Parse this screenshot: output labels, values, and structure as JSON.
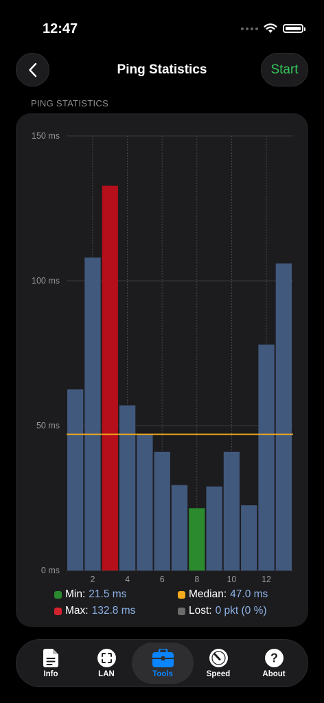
{
  "status_bar": {
    "time": "12:47"
  },
  "nav": {
    "title": "Ping Statistics",
    "start_label": "Start"
  },
  "section": {
    "header": "PING STATISTICS"
  },
  "colors": {
    "bar": "#42597e",
    "min_bar": "#2b8a2e",
    "max_bar": "#b40f1b",
    "median_line": "#f4aa1c",
    "lost": "#6b6b6b",
    "accent": "#0a84ff",
    "start": "#34c759"
  },
  "chart_data": {
    "type": "bar",
    "x": [
      1,
      2,
      3,
      4,
      5,
      6,
      7,
      8,
      9,
      10,
      11,
      12,
      13
    ],
    "values": [
      62.5,
      108,
      132.8,
      57,
      47,
      41,
      29.5,
      21.5,
      29,
      41,
      22.5,
      78,
      106
    ],
    "min_index": 7,
    "max_index": 2,
    "median": 47.0,
    "ylim": [
      0,
      150
    ],
    "y_ticks": [
      0,
      50,
      100,
      150
    ],
    "y_tick_labels": [
      "0 ms",
      "50 ms",
      "100 ms",
      "150 ms"
    ],
    "x_ticks": [
      2,
      4,
      6,
      8,
      10,
      12
    ],
    "x_tick_labels": [
      "2",
      "4",
      "6",
      "8",
      "10",
      "12"
    ],
    "grid": true
  },
  "legend": {
    "min_label": "Min:",
    "min_value": "21.5 ms",
    "median_label": "Median:",
    "median_value": "47.0 ms",
    "max_label": "Max:",
    "max_value": "132.8 ms",
    "lost_label": "Lost:",
    "lost_value": "0 pkt (0 %)"
  },
  "tabs": [
    {
      "label": "Info",
      "icon": "document-icon"
    },
    {
      "label": "LAN",
      "icon": "lan-scan-icon"
    },
    {
      "label": "Tools",
      "icon": "toolbox-icon",
      "active": true
    },
    {
      "label": "Speed",
      "icon": "speedometer-icon"
    },
    {
      "label": "About",
      "icon": "question-icon"
    }
  ]
}
